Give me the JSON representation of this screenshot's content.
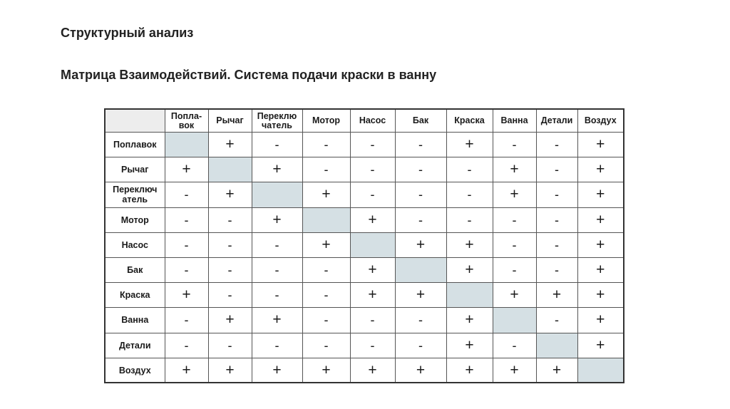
{
  "slide": {
    "title": "Структурный анализ",
    "subtitle": "Матрица Взаимодействий. Система подачи краски в ванну"
  },
  "matrix": {
    "column_headers": [
      [
        "Попла-",
        "вок"
      ],
      [
        "Рычаг"
      ],
      [
        "Переклю",
        "чатель"
      ],
      [
        "Мотор"
      ],
      [
        "Насос"
      ],
      [
        "Бак"
      ],
      [
        "Краска"
      ],
      [
        "Ванна"
      ],
      [
        "Детали"
      ],
      [
        "Воздух"
      ]
    ],
    "row_headers": [
      [
        "Поплавок"
      ],
      [
        "Рычаг"
      ],
      [
        "Переключ",
        "атель"
      ],
      [
        "Мотор"
      ],
      [
        "Насос"
      ],
      [
        "Бак"
      ],
      [
        "Краска"
      ],
      [
        "Ванна"
      ],
      [
        "Детали"
      ],
      [
        "Воздух"
      ]
    ],
    "cells": [
      [
        "",
        "+",
        "-",
        "-",
        "-",
        "-",
        "+",
        "-",
        "-",
        "+"
      ],
      [
        "+",
        "",
        "+",
        "-",
        "-",
        "-",
        "-",
        "+",
        "-",
        "+"
      ],
      [
        "-",
        "+",
        "",
        "+",
        "-",
        "-",
        "-",
        "+",
        "-",
        "+"
      ],
      [
        "-",
        "-",
        "+",
        "",
        "+",
        "-",
        "-",
        "-",
        "-",
        "+"
      ],
      [
        "-",
        "-",
        "-",
        "+",
        "",
        "+",
        "+",
        "-",
        "-",
        "+"
      ],
      [
        "-",
        "-",
        "-",
        "-",
        "+",
        "",
        "+",
        "-",
        "-",
        "+"
      ],
      [
        "+",
        "-",
        "-",
        "-",
        "+",
        "+",
        "",
        "+",
        "+",
        "+"
      ],
      [
        "-",
        "+",
        "+",
        "-",
        "-",
        "-",
        "+",
        "",
        "-",
        "+"
      ],
      [
        "-",
        "-",
        "-",
        "-",
        "-",
        "-",
        "+",
        "-",
        "",
        "+"
      ],
      [
        "+",
        "+",
        "+",
        "+",
        "+",
        "+",
        "+",
        "+",
        "+",
        ""
      ]
    ],
    "diagonal_color": "#d5e0e4"
  }
}
